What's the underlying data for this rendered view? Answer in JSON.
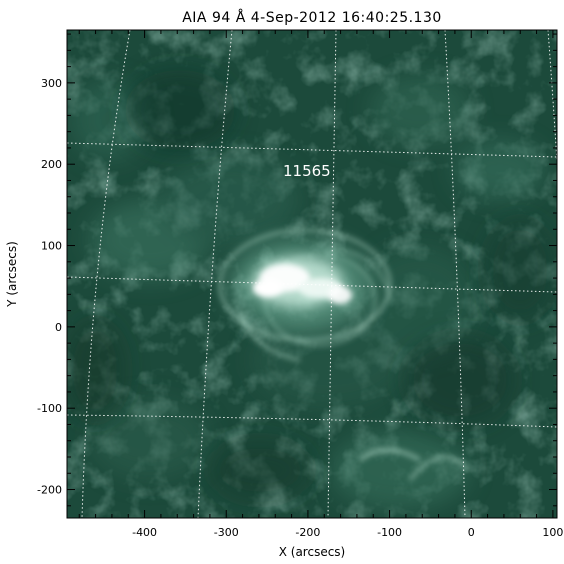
{
  "figure": {
    "title": "AIA 94 Å  4-Sep-2012 16:40:25.130",
    "region_label": "11565",
    "colors": {
      "background": "#ffffff",
      "image_base": "#1c4a3b",
      "bright": "#e8f6f0",
      "grid": "#ffffff",
      "frame": "#000000",
      "text": "#000000"
    }
  },
  "axes": {
    "x": {
      "label": "X (arcsecs)",
      "range": [
        -495,
        105
      ],
      "ticks": [
        -400,
        -300,
        -200,
        -100,
        0,
        100
      ],
      "tick_labels": [
        "-400",
        "-300",
        "-200",
        "-100",
        "0",
        "100"
      ]
    },
    "y": {
      "label": "Y (arcsecs)",
      "range": [
        -235,
        365
      ],
      "ticks": [
        -200,
        -100,
        0,
        100,
        200,
        300
      ],
      "tick_labels": [
        "-200",
        "-100",
        "0",
        "100",
        "200",
        "300"
      ]
    }
  },
  "grid": {
    "style": "dotted",
    "type": "heliographic lat/lon overlay"
  }
}
